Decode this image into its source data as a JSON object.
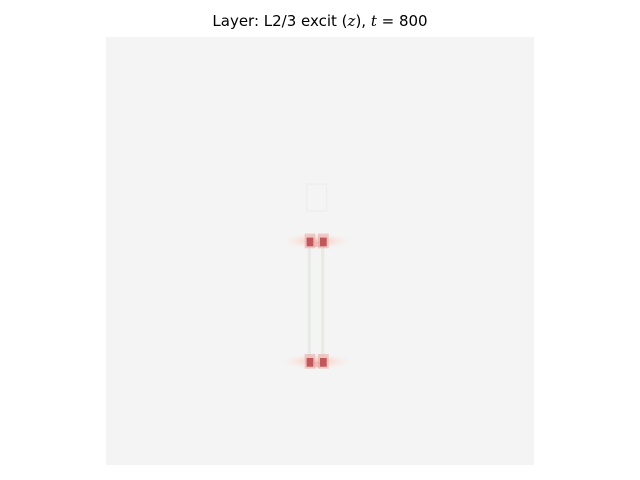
{
  "chart_data": {
    "type": "heatmap",
    "title": {
      "prefix": "Layer: L2/3 excit (",
      "var": "z",
      "mid": "), ",
      "time_var": "t",
      "eq": " = ",
      "time_value": "800"
    },
    "xlabel": "",
    "ylabel": "",
    "axes_visible": false,
    "grid": false,
    "colormap": "diverging red-white-blue (RdBu-like), values near zero appear light grey",
    "background_value": 0.0,
    "background_color": "#f4f4f4",
    "grid_size": [
      64,
      64
    ],
    "features": [
      {
        "label": "upper-left red hotspot",
        "col": 30,
        "row": 30,
        "value": 0.8
      },
      {
        "label": "upper-right red hotspot",
        "col": 32,
        "row": 30,
        "value": 0.8
      },
      {
        "label": "lower-left red hotspot",
        "col": 30,
        "row": 48,
        "value": 0.8
      },
      {
        "label": "lower-right red hotspot",
        "col": 32,
        "row": 48,
        "value": 0.8
      },
      {
        "label": "upper pink halo",
        "col_range": [
          26,
          36
        ],
        "row": 30,
        "value": 0.15
      },
      {
        "label": "lower pink halo",
        "col_range": [
          26,
          36
        ],
        "row": 48,
        "value": 0.15
      },
      {
        "label": "left vertical faint line",
        "col": 30,
        "row_range": [
          31,
          48
        ],
        "value": -0.05
      },
      {
        "label": "right vertical faint line",
        "col": 32,
        "row_range": [
          31,
          48
        ],
        "value": -0.05
      },
      {
        "label": "faint square outline",
        "col_range": [
          30,
          32
        ],
        "row_range": [
          22,
          25
        ],
        "value": -0.02
      }
    ],
    "colors": {
      "strong_red": "#c4555a",
      "mid_red": "#e8a8a3",
      "light_pink": "#fbe3dc",
      "faint_line": "#e8ebe5",
      "faint_outline": "#eeeeee"
    }
  }
}
